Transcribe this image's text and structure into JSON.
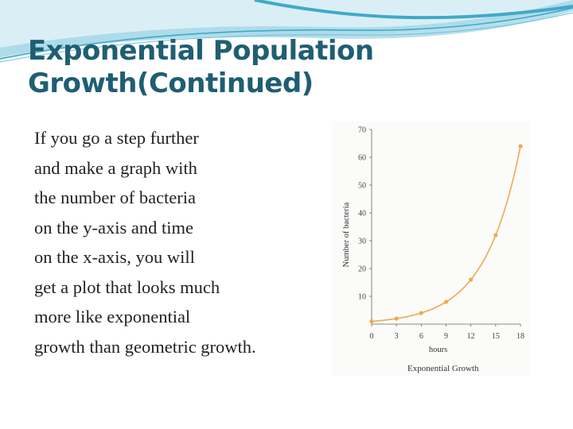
{
  "slide": {
    "title_lines": [
      "Exponential Population",
      "Growth(Continued)"
    ],
    "body_lines": [
      "If you go a step further",
      "and make a graph with",
      "the number of bacteria",
      "on the y-axis and time",
      "on the x-axis, you will",
      "get a plot that looks much",
      " more like exponential",
      "growth than geometric growth."
    ]
  },
  "colors": {
    "title": "#1f5e73",
    "curve": "#f0a94e",
    "marker": "#f0a94e",
    "swoosh_dark": "#3fa9c9",
    "swoosh_light": "#bfe3ee"
  },
  "chart_data": {
    "type": "line",
    "title": "Exponential Growth",
    "xlabel": "hours",
    "ylabel": "Number of bacteria",
    "x_ticks": [
      0,
      3,
      6,
      9,
      12,
      15,
      18
    ],
    "y_ticks": [
      10,
      20,
      30,
      40,
      50,
      60,
      70
    ],
    "xlim": [
      0,
      18
    ],
    "ylim": [
      0,
      70
    ],
    "grid": false,
    "series": [
      {
        "x": [
          0,
          3,
          6,
          9,
          12,
          15,
          18
        ],
        "y": [
          1,
          2,
          4,
          8,
          16,
          32,
          64
        ]
      }
    ]
  }
}
